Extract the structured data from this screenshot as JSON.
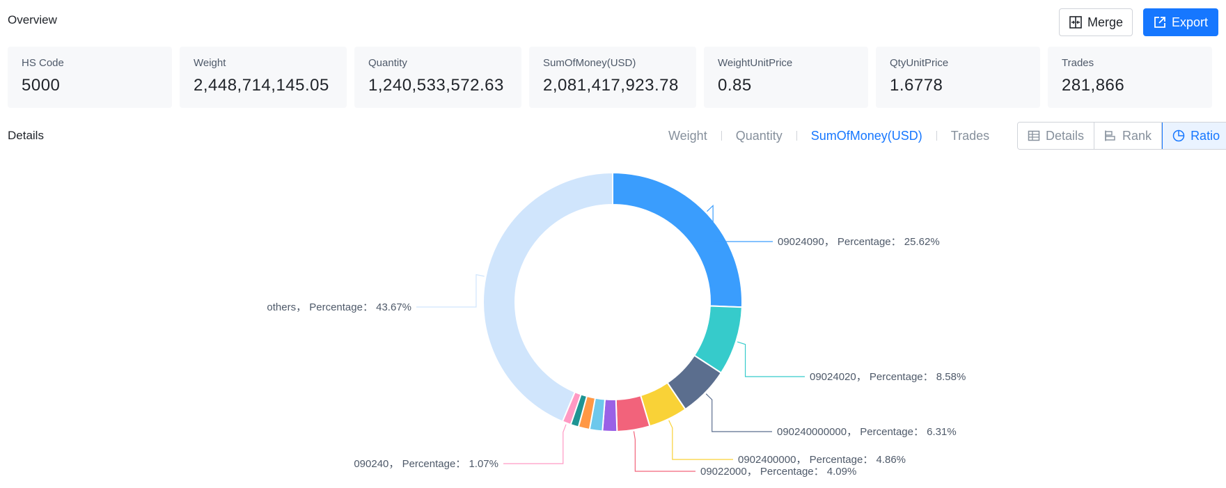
{
  "overview": {
    "title": "Overview",
    "merge_label": "Merge",
    "export_label": "Export"
  },
  "stats": [
    {
      "label": "HS Code",
      "value": "5000"
    },
    {
      "label": "Weight",
      "value": "2,448,714,145.05"
    },
    {
      "label": "Quantity",
      "value": "1,240,533,572.63"
    },
    {
      "label": "SumOfMoney(USD)",
      "value": "2,081,417,923.78"
    },
    {
      "label": "WeightUnitPrice",
      "value": "0.85"
    },
    {
      "label": "QtyUnitPrice",
      "value": "1.6778"
    },
    {
      "label": "Trades",
      "value": "281,866"
    }
  ],
  "details": {
    "title": "Details",
    "metric_tabs": [
      "Weight",
      "Quantity",
      "SumOfMoney(USD)",
      "Trades"
    ],
    "active_metric": "SumOfMoney(USD)",
    "view_buttons": [
      "Details",
      "Rank",
      "Ratio"
    ],
    "active_view": "Ratio"
  },
  "colors": {
    "accent": "#1677ff",
    "card_bg": "#f7f8fa"
  },
  "chart_data": {
    "type": "pie",
    "donut": true,
    "slices": [
      {
        "name": "09024090",
        "value": 25.62,
        "color": "#3a9dfd",
        "label": "09024090， Percentage： 25.62%"
      },
      {
        "name": "09024020",
        "value": 8.58,
        "color": "#36cbcb",
        "label": "09024020， Percentage： 8.58%"
      },
      {
        "name": "090240000000",
        "value": 6.31,
        "color": "#5b6e8e",
        "label": "090240000000， Percentage： 6.31%"
      },
      {
        "name": "0902400000",
        "value": 4.86,
        "color": "#f9d237",
        "label": "0902400000， Percentage： 4.86%"
      },
      {
        "name": "09022000",
        "value": 4.09,
        "color": "#f2637b",
        "label": "09022000， Percentage： 4.09%"
      },
      {
        "name": "",
        "value": 1.8,
        "color": "#9a61e6",
        "label": ""
      },
      {
        "name": "",
        "value": 1.6,
        "color": "#6dc8ec",
        "label": ""
      },
      {
        "name": "",
        "value": 1.4,
        "color": "#ff9845",
        "label": ""
      },
      {
        "name": "",
        "value": 1.0,
        "color": "#1e9493",
        "label": ""
      },
      {
        "name": "090240",
        "value": 1.07,
        "color": "#ff99c3",
        "label": "090240， Percentage： 1.07%"
      },
      {
        "name": "others",
        "value": 43.67,
        "color": "#d0e5fc",
        "label": "others， Percentage： 43.67%"
      }
    ]
  }
}
